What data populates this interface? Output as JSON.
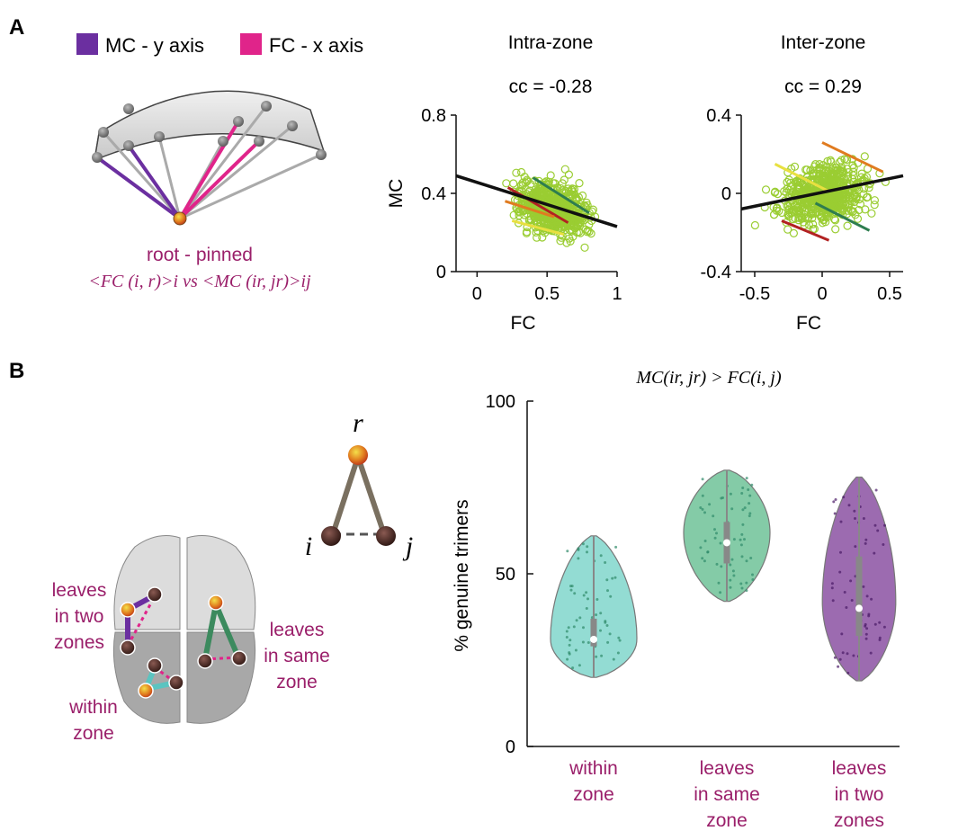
{
  "panel_a": {
    "label": "A",
    "legend": {
      "mc": "MC - y axis",
      "fc": "FC - x axis",
      "mc_color": "#6b2fa0",
      "fc_color": "#e0248a"
    },
    "root_label": "root - pinned",
    "formula": "<FC (i, r)>i  vs <MC (ir, jr)>ij"
  },
  "panel_b": {
    "label": "B",
    "trimer": {
      "r": "r",
      "i": "i",
      "j": "j"
    },
    "brain_labels": {
      "two_zones": [
        "leaves",
        "in two",
        "zones"
      ],
      "same_zone": [
        "leaves",
        "in same",
        "zone"
      ],
      "within": [
        "within",
        "zone"
      ]
    }
  },
  "chart_data": [
    {
      "type": "scatter",
      "title": "Intra-zone",
      "annotation": "cc = -0.28",
      "xlabel": "FC",
      "ylabel": "MC",
      "xlim": [
        -0.15,
        1.0
      ],
      "ylim": [
        0,
        0.8
      ],
      "xticks": [
        "0",
        "0.5",
        "1"
      ],
      "yticks": [
        "0",
        "0.4",
        "0.8"
      ],
      "point_color": "#9acd32",
      "fit_line": {
        "x": [
          -0.15,
          1.0
        ],
        "y": [
          0.49,
          0.23
        ],
        "color": "#111111"
      },
      "sub_lines": [
        {
          "x": [
            0.4,
            0.8
          ],
          "y": [
            0.48,
            0.3
          ],
          "color": "#2e7d4f"
        },
        {
          "x": [
            0.22,
            0.65
          ],
          "y": [
            0.43,
            0.25
          ],
          "color": "#b22222"
        },
        {
          "x": [
            0.2,
            0.55
          ],
          "y": [
            0.36,
            0.28
          ],
          "color": "#e07b20"
        },
        {
          "x": [
            0.25,
            0.62
          ],
          "y": [
            0.26,
            0.19
          ],
          "color": "#e8e040"
        }
      ]
    },
    {
      "type": "scatter",
      "title": "Inter-zone",
      "annotation": "cc = 0.29",
      "xlabel": "FC",
      "ylabel": "",
      "xlim": [
        -0.6,
        0.6
      ],
      "ylim": [
        -0.4,
        0.4
      ],
      "xticks": [
        "-0.5",
        "0",
        "0.5"
      ],
      "yticks": [
        "-0.4",
        "0",
        "0.4"
      ],
      "point_color": "#9acd32",
      "fit_line": {
        "x": [
          -0.6,
          0.6
        ],
        "y": [
          -0.08,
          0.09
        ],
        "color": "#111111"
      },
      "sub_lines": [
        {
          "x": [
            0.0,
            0.45
          ],
          "y": [
            0.26,
            0.11
          ],
          "color": "#e07b20"
        },
        {
          "x": [
            -0.35,
            0.05
          ],
          "y": [
            0.15,
            0.01
          ],
          "color": "#e8e040"
        },
        {
          "x": [
            -0.05,
            0.35
          ],
          "y": [
            -0.05,
            -0.19
          ],
          "color": "#2e7d4f"
        },
        {
          "x": [
            -0.3,
            0.05
          ],
          "y": [
            -0.14,
            -0.24
          ],
          "color": "#b22222"
        }
      ]
    },
    {
      "type": "violin",
      "title": "MC(ir, jr) > FC(i, j)",
      "ylabel": "% genuine trimers",
      "ylim": [
        0,
        100
      ],
      "yticks": [
        "0",
        "50",
        "100"
      ],
      "categories": [
        {
          "lines": [
            "within",
            "zone"
          ],
          "color": "#6fd0c4",
          "min": 20,
          "max": 61,
          "median": 31,
          "q1": 29,
          "q3": 37,
          "peak": 31
        },
        {
          "lines": [
            "leaves",
            "in same",
            "zone"
          ],
          "color": "#5bb98a",
          "min": 42,
          "max": 80,
          "median": 59,
          "q1": 53,
          "q3": 65,
          "peak": 62
        },
        {
          "lines": [
            "leaves",
            "in two",
            "zones"
          ],
          "color": "#7b3a96",
          "min": 19,
          "max": 78,
          "median": 40,
          "q1": 32,
          "q3": 55,
          "peak": 42
        }
      ]
    }
  ]
}
